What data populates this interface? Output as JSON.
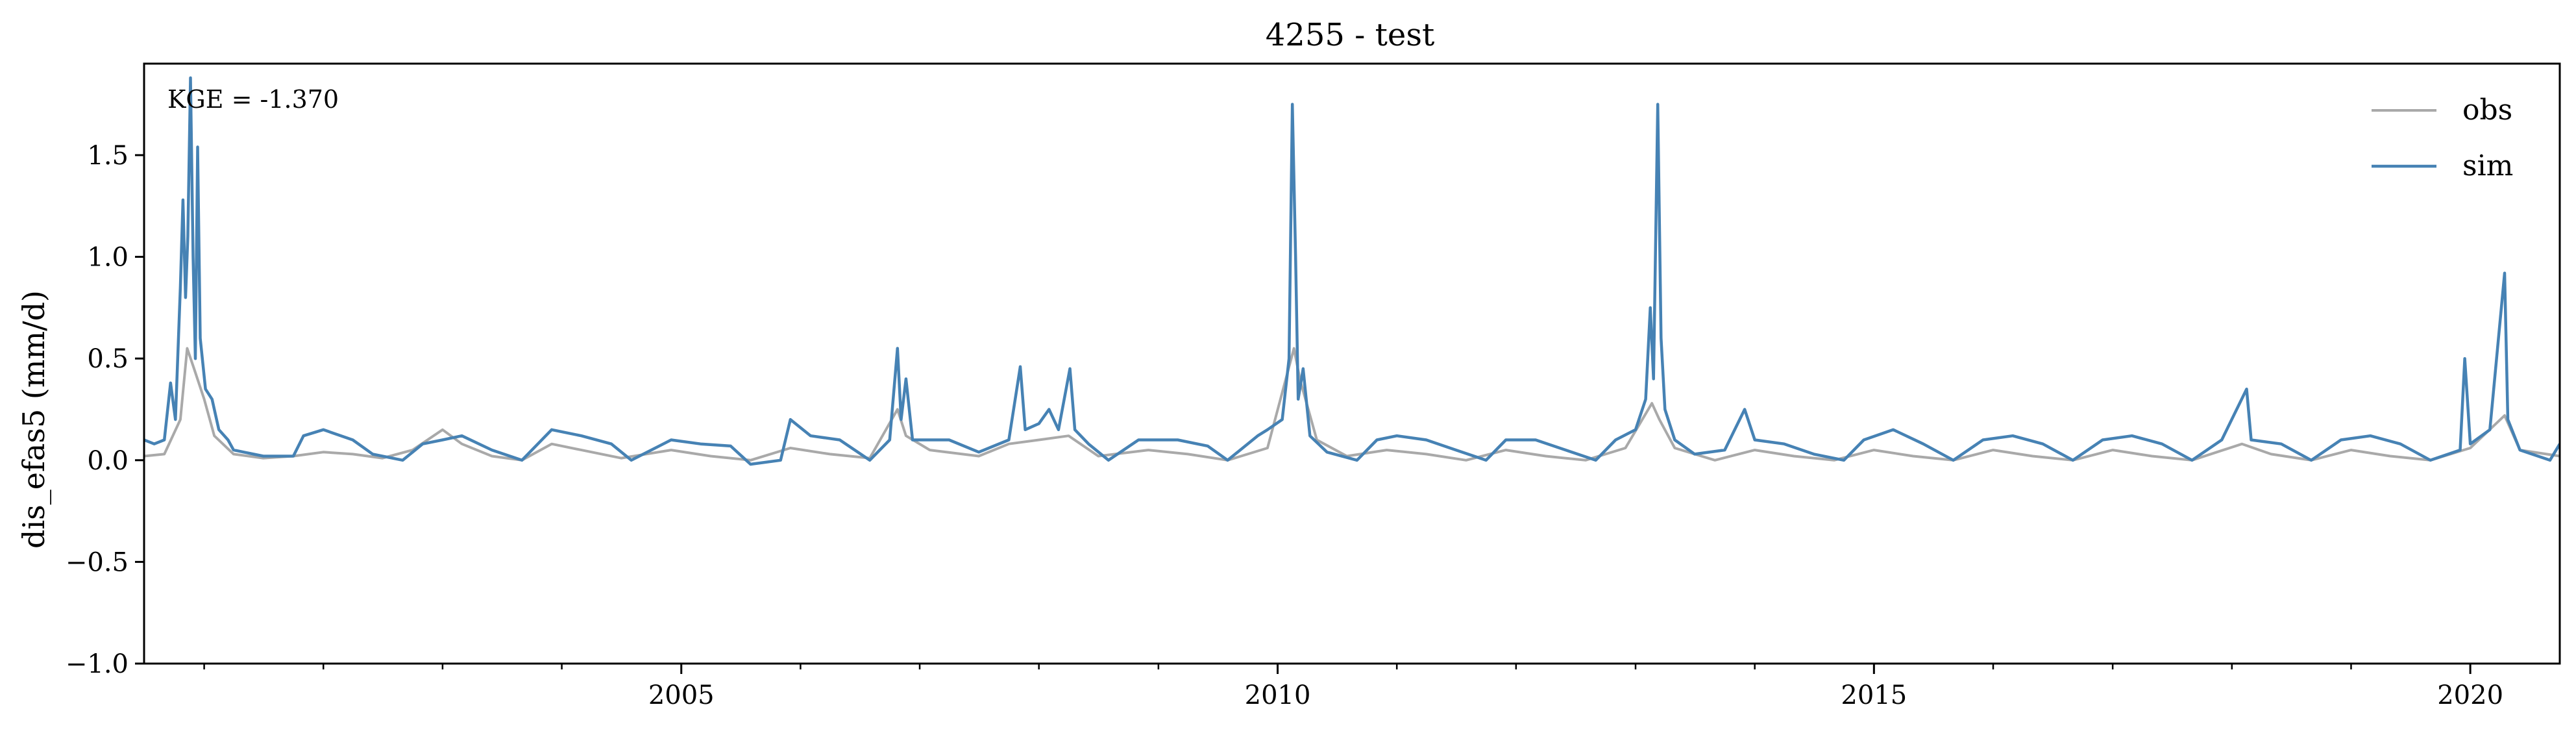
{
  "chart_data": {
    "type": "line",
    "title": "4255 - test",
    "xlabel": "",
    "ylabel": "dis_efas5 (mm/d)",
    "xlim": [
      "2000-07-01",
      "2020-10-01"
    ],
    "ylim": [
      -1.0,
      1.95
    ],
    "grid": false,
    "legend_position": "top-right",
    "annotation": "KGE = -1.370",
    "x_ticks": [
      {
        "x": "2005-01-01",
        "label": "2005"
      },
      {
        "x": "2010-01-01",
        "label": "2010"
      },
      {
        "x": "2015-01-01",
        "label": "2015"
      },
      {
        "x": "2020-01-01",
        "label": "2020"
      }
    ],
    "y_ticks": [
      {
        "y": -1.0,
        "label": "−1.0"
      },
      {
        "y": -0.5,
        "label": "−0.5"
      },
      {
        "y": 0.0,
        "label": "0.0"
      },
      {
        "y": 0.5,
        "label": "0.5"
      },
      {
        "y": 1.0,
        "label": "1.0"
      },
      {
        "y": 1.5,
        "label": "1.5"
      }
    ],
    "series": [
      {
        "name": "obs",
        "color": "#a9a9a9",
        "points": [
          [
            "2000-07-01",
            0.02
          ],
          [
            "2000-09-01",
            0.03
          ],
          [
            "2000-10-20",
            0.2
          ],
          [
            "2000-11-10",
            0.55
          ],
          [
            "2000-12-01",
            0.45
          ],
          [
            "2001-01-01",
            0.3
          ],
          [
            "2001-02-01",
            0.12
          ],
          [
            "2001-04-01",
            0.03
          ],
          [
            "2001-07-01",
            0.01
          ],
          [
            "2001-10-01",
            0.02
          ],
          [
            "2002-01-01",
            0.04
          ],
          [
            "2002-04-01",
            0.03
          ],
          [
            "2002-07-01",
            0.01
          ],
          [
            "2002-10-01",
            0.05
          ],
          [
            "2003-01-01",
            0.15
          ],
          [
            "2003-03-01",
            0.08
          ],
          [
            "2003-06-01",
            0.02
          ],
          [
            "2003-09-01",
            0.0
          ],
          [
            "2003-12-01",
            0.08
          ],
          [
            "2004-03-01",
            0.05
          ],
          [
            "2004-07-01",
            0.01
          ],
          [
            "2004-12-01",
            0.05
          ],
          [
            "2005-04-01",
            0.02
          ],
          [
            "2005-08-01",
            0.0
          ],
          [
            "2005-12-01",
            0.06
          ],
          [
            "2006-04-01",
            0.03
          ],
          [
            "2006-08-01",
            0.01
          ],
          [
            "2006-10-25",
            0.25
          ],
          [
            "2006-11-20",
            0.12
          ],
          [
            "2007-02-01",
            0.05
          ],
          [
            "2007-07-01",
            0.02
          ],
          [
            "2007-10-01",
            0.08
          ],
          [
            "2008-01-01",
            0.1
          ],
          [
            "2008-04-01",
            0.12
          ],
          [
            "2008-07-01",
            0.02
          ],
          [
            "2008-12-01",
            0.05
          ],
          [
            "2009-04-01",
            0.03
          ],
          [
            "2009-08-01",
            0.0
          ],
          [
            "2009-12-01",
            0.06
          ],
          [
            "2010-02-20",
            0.55
          ],
          [
            "2010-03-10",
            0.4
          ],
          [
            "2010-05-01",
            0.1
          ],
          [
            "2010-08-01",
            0.02
          ],
          [
            "2010-12-01",
            0.05
          ],
          [
            "2011-04-01",
            0.03
          ],
          [
            "2011-08-01",
            0.0
          ],
          [
            "2011-12-01",
            0.05
          ],
          [
            "2012-04-01",
            0.02
          ],
          [
            "2012-08-01",
            0.0
          ],
          [
            "2012-12-01",
            0.06
          ],
          [
            "2013-02-20",
            0.28
          ],
          [
            "2013-03-15",
            0.2
          ],
          [
            "2013-05-01",
            0.06
          ],
          [
            "2013-09-01",
            0.0
          ],
          [
            "2014-01-01",
            0.05
          ],
          [
            "2014-05-01",
            0.02
          ],
          [
            "2014-09-01",
            0.0
          ],
          [
            "2015-01-01",
            0.05
          ],
          [
            "2015-05-01",
            0.02
          ],
          [
            "2015-09-01",
            0.0
          ],
          [
            "2016-01-01",
            0.05
          ],
          [
            "2016-05-01",
            0.02
          ],
          [
            "2016-09-01",
            0.0
          ],
          [
            "2017-01-01",
            0.05
          ],
          [
            "2017-05-01",
            0.02
          ],
          [
            "2017-09-01",
            0.0
          ],
          [
            "2018-02-01",
            0.08
          ],
          [
            "2018-05-01",
            0.03
          ],
          [
            "2018-09-01",
            0.0
          ],
          [
            "2019-01-01",
            0.05
          ],
          [
            "2019-05-01",
            0.02
          ],
          [
            "2019-09-01",
            0.0
          ],
          [
            "2020-01-01",
            0.06
          ],
          [
            "2020-04-15",
            0.22
          ],
          [
            "2020-06-01",
            0.05
          ],
          [
            "2020-10-01",
            0.02
          ]
        ]
      },
      {
        "name": "sim",
        "color": "#4682b4",
        "points": [
          [
            "2000-07-01",
            0.1
          ],
          [
            "2000-08-01",
            0.08
          ],
          [
            "2000-09-01",
            0.1
          ],
          [
            "2000-09-20",
            0.38
          ],
          [
            "2000-10-05",
            0.2
          ],
          [
            "2000-10-20",
            0.85
          ],
          [
            "2000-10-28",
            1.28
          ],
          [
            "2000-11-05",
            0.8
          ],
          [
            "2000-11-12",
            1.1
          ],
          [
            "2000-11-20",
            1.88
          ],
          [
            "2000-11-28",
            1.0
          ],
          [
            "2000-12-05",
            0.5
          ],
          [
            "2000-12-12",
            1.54
          ],
          [
            "2000-12-20",
            0.6
          ],
          [
            "2001-01-05",
            0.35
          ],
          [
            "2001-01-25",
            0.3
          ],
          [
            "2001-02-15",
            0.15
          ],
          [
            "2001-03-15",
            0.1
          ],
          [
            "2001-04-01",
            0.05
          ],
          [
            "2001-07-01",
            0.02
          ],
          [
            "2001-10-01",
            0.02
          ],
          [
            "2001-11-01",
            0.12
          ],
          [
            "2002-01-01",
            0.15
          ],
          [
            "2002-04-01",
            0.1
          ],
          [
            "2002-06-01",
            0.03
          ],
          [
            "2002-09-01",
            0.0
          ],
          [
            "2002-11-01",
            0.08
          ],
          [
            "2003-01-01",
            0.1
          ],
          [
            "2003-03-01",
            0.12
          ],
          [
            "2003-06-01",
            0.05
          ],
          [
            "2003-09-01",
            0.0
          ],
          [
            "2003-12-01",
            0.15
          ],
          [
            "2004-03-01",
            0.12
          ],
          [
            "2004-06-01",
            0.08
          ],
          [
            "2004-08-01",
            0.0
          ],
          [
            "2004-12-01",
            0.1
          ],
          [
            "2005-03-01",
            0.08
          ],
          [
            "2005-06-01",
            0.07
          ],
          [
            "2005-08-01",
            -0.02
          ],
          [
            "2005-11-01",
            0.0
          ],
          [
            "2005-12-01",
            0.2
          ],
          [
            "2006-02-01",
            0.12
          ],
          [
            "2006-05-01",
            0.1
          ],
          [
            "2006-08-01",
            0.0
          ],
          [
            "2006-10-01",
            0.1
          ],
          [
            "2006-10-25",
            0.55
          ],
          [
            "2006-11-05",
            0.2
          ],
          [
            "2006-11-20",
            0.4
          ],
          [
            "2006-12-10",
            0.1
          ],
          [
            "2007-04-01",
            0.1
          ],
          [
            "2007-07-01",
            0.04
          ],
          [
            "2007-10-01",
            0.1
          ],
          [
            "2007-11-05",
            0.46
          ],
          [
            "2007-11-20",
            0.15
          ],
          [
            "2008-01-01",
            0.18
          ],
          [
            "2008-02-01",
            0.25
          ],
          [
            "2008-03-01",
            0.15
          ],
          [
            "2008-04-05",
            0.45
          ],
          [
            "2008-04-20",
            0.15
          ],
          [
            "2008-06-01",
            0.08
          ],
          [
            "2008-08-01",
            0.0
          ],
          [
            "2008-11-01",
            0.1
          ],
          [
            "2009-03-01",
            0.1
          ],
          [
            "2009-06-01",
            0.07
          ],
          [
            "2009-08-01",
            0.0
          ],
          [
            "2009-11-01",
            0.12
          ],
          [
            "2009-12-01",
            0.15
          ],
          [
            "2010-01-15",
            0.2
          ],
          [
            "2010-02-05",
            0.5
          ],
          [
            "2010-02-15",
            1.75
          ],
          [
            "2010-02-25",
            1.0
          ],
          [
            "2010-03-05",
            0.3
          ],
          [
            "2010-03-20",
            0.45
          ],
          [
            "2010-04-10",
            0.12
          ],
          [
            "2010-06-01",
            0.04
          ],
          [
            "2010-09-01",
            0.0
          ],
          [
            "2010-11-01",
            0.1
          ],
          [
            "2011-01-01",
            0.12
          ],
          [
            "2011-04-01",
            0.1
          ],
          [
            "2011-07-01",
            0.05
          ],
          [
            "2011-10-01",
            0.0
          ],
          [
            "2011-12-01",
            0.1
          ],
          [
            "2012-03-01",
            0.1
          ],
          [
            "2012-06-01",
            0.05
          ],
          [
            "2012-09-01",
            0.0
          ],
          [
            "2012-11-01",
            0.1
          ],
          [
            "2013-01-01",
            0.15
          ],
          [
            "2013-02-01",
            0.3
          ],
          [
            "2013-02-15",
            0.75
          ],
          [
            "2013-02-25",
            0.4
          ],
          [
            "2013-03-10",
            1.75
          ],
          [
            "2013-03-20",
            0.6
          ],
          [
            "2013-04-01",
            0.25
          ],
          [
            "2013-05-01",
            0.1
          ],
          [
            "2013-07-01",
            0.03
          ],
          [
            "2013-10-01",
            0.05
          ],
          [
            "2013-12-01",
            0.25
          ],
          [
            "2014-01-01",
            0.1
          ],
          [
            "2014-04-01",
            0.08
          ],
          [
            "2014-07-01",
            0.03
          ],
          [
            "2014-10-01",
            0.0
          ],
          [
            "2014-12-01",
            0.1
          ],
          [
            "2015-03-01",
            0.15
          ],
          [
            "2015-06-01",
            0.08
          ],
          [
            "2015-09-01",
            0.0
          ],
          [
            "2015-12-01",
            0.1
          ],
          [
            "2016-03-01",
            0.12
          ],
          [
            "2016-06-01",
            0.08
          ],
          [
            "2016-09-01",
            0.0
          ],
          [
            "2016-12-01",
            0.1
          ],
          [
            "2017-03-01",
            0.12
          ],
          [
            "2017-06-01",
            0.08
          ],
          [
            "2017-09-01",
            0.0
          ],
          [
            "2017-12-01",
            0.1
          ],
          [
            "2018-02-15",
            0.35
          ],
          [
            "2018-03-01",
            0.1
          ],
          [
            "2018-06-01",
            0.08
          ],
          [
            "2018-09-01",
            0.0
          ],
          [
            "2018-12-01",
            0.1
          ],
          [
            "2019-03-01",
            0.12
          ],
          [
            "2019-06-01",
            0.08
          ],
          [
            "2019-09-01",
            0.0
          ],
          [
            "2019-12-01",
            0.05
          ],
          [
            "2019-12-15",
            0.5
          ],
          [
            "2020-01-01",
            0.08
          ],
          [
            "2020-03-01",
            0.15
          ],
          [
            "2020-04-15",
            0.92
          ],
          [
            "2020-04-25",
            0.2
          ],
          [
            "2020-06-01",
            0.05
          ],
          [
            "2020-09-01",
            0.0
          ],
          [
            "2020-10-01",
            0.08
          ]
        ]
      }
    ]
  }
}
